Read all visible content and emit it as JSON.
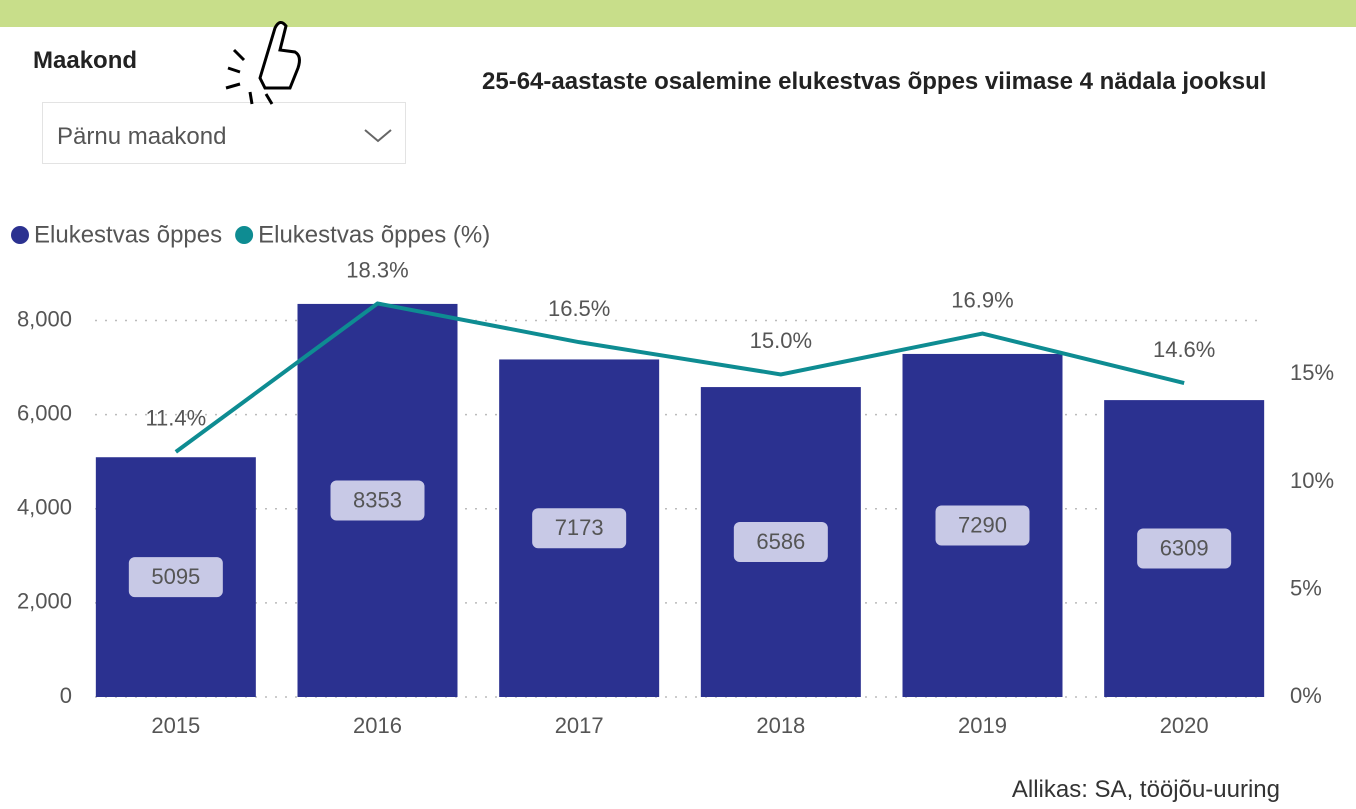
{
  "slicer": {
    "label": "Maakond",
    "selected": "Pärnu maakond"
  },
  "chart_data": {
    "type": "bar",
    "title": "25-64-aastaste osalemine elukestvas õppes viimase 4 nädala jooksul",
    "categories": [
      "2015",
      "2016",
      "2017",
      "2018",
      "2019",
      "2020"
    ],
    "series": [
      {
        "name": "Elukestvas õppes",
        "type": "bar",
        "color": "#2b3190",
        "values": [
          5095,
          8353,
          7173,
          6586,
          7290,
          6309
        ]
      },
      {
        "name": "Elukestvas õppes (%)",
        "type": "line",
        "axis": "y2",
        "color": "#0e8c92",
        "values": [
          11.4,
          18.3,
          16.5,
          15.0,
          16.9,
          14.6
        ],
        "value_labels": [
          "11.4%",
          "18.3%",
          "16.5%",
          "15.0%",
          "16.9%",
          "14.6%"
        ]
      }
    ],
    "ylim": [
      0,
      8500
    ],
    "yticks": [
      0,
      {
        "value": 2000,
        "label": "2,000"
      },
      {
        "value": 4000,
        "label": "4,000"
      },
      {
        "value": 6000,
        "label": "6,000"
      },
      {
        "value": 8000,
        "label": "8,000"
      }
    ],
    "y2lim": [
      0,
      18.6
    ],
    "y2ticks": [
      {
        "value": 0,
        "label": "0%"
      },
      {
        "value": 5,
        "label": "5%"
      },
      {
        "value": 10,
        "label": "10%"
      },
      {
        "value": 15,
        "label": "15%"
      }
    ],
    "grid": true,
    "legend": "top-left",
    "source": "Allikas: SA, tööjõu-uuring"
  }
}
